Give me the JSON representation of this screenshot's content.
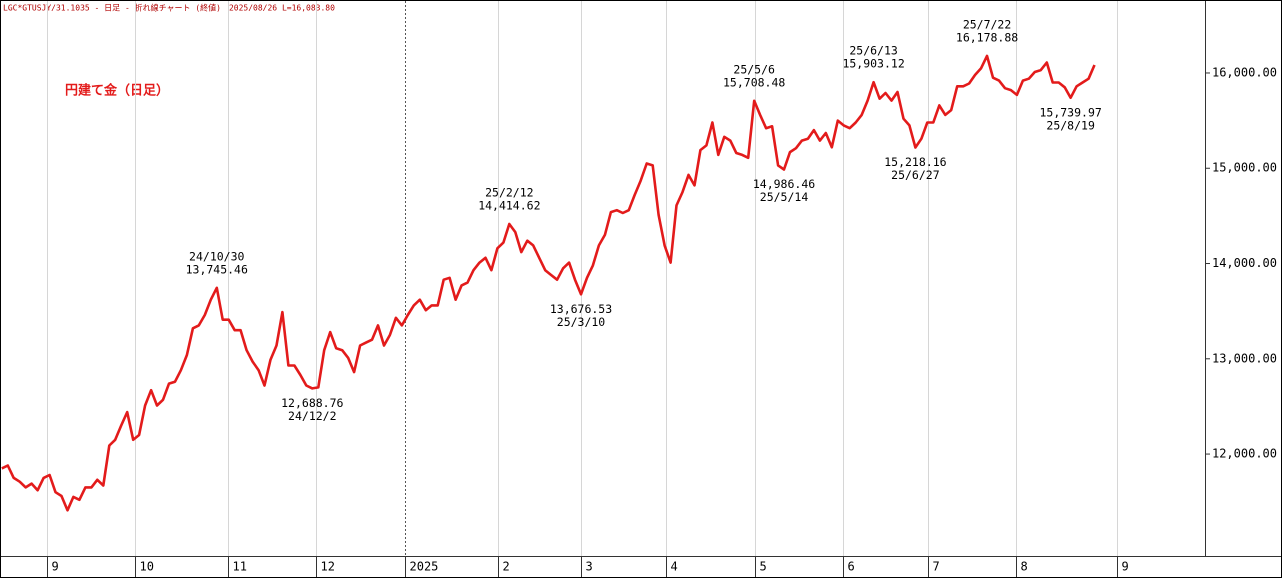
{
  "header": "LGC*GTUSJY/31.1035 - 日足 - 折れ線チャート (終値)　2025/08/26 L=16,083.80",
  "chart_data": {
    "type": "line",
    "title": "円建て金（日足）",
    "color": "#e31b1b",
    "values": [
      11850,
      11880,
      11750,
      11710,
      11650,
      11690,
      11620,
      11750,
      11780,
      11600,
      11560,
      11410,
      11550,
      11520,
      11650,
      11650,
      11730,
      11670,
      12090,
      12150,
      12300,
      12440,
      12150,
      12200,
      12510,
      12670,
      12510,
      12570,
      12740,
      12760,
      12880,
      13040,
      13320,
      13350,
      13460,
      13620,
      13745.46,
      13410,
      13410,
      13300,
      13300,
      13090,
      12970,
      12880,
      12720,
      12990,
      13140,
      13490,
      12930,
      12930,
      12830,
      12720,
      12688.76,
      12700,
      13090,
      13280,
      13110,
      13090,
      13010,
      12860,
      13140,
      13170,
      13200,
      13350,
      13140,
      13250,
      13430,
      13350,
      13460,
      13560,
      13620,
      13510,
      13560,
      13560,
      13830,
      13850,
      13620,
      13770,
      13800,
      13930,
      14010,
      14060,
      13930,
      14160,
      14220,
      14414.62,
      14330,
      14120,
      14240,
      14190,
      14060,
      13930,
      13880,
      13830,
      13950,
      14010,
      13830,
      13676.53,
      13850,
      13980,
      14190,
      14300,
      14540,
      14560,
      14530,
      14560,
      14720,
      14870,
      15050,
      15030,
      14510,
      14190,
      14010,
      14610,
      14750,
      14930,
      14820,
      15190,
      15240,
      15480,
      15140,
      15330,
      15290,
      15160,
      15140,
      15110,
      15708.48,
      15560,
      15420,
      15440,
      15030,
      14986.46,
      15170,
      15210,
      15290,
      15310,
      15400,
      15290,
      15370,
      15220,
      15500,
      15450,
      15420,
      15480,
      15560,
      15710,
      15903.12,
      15730,
      15790,
      15710,
      15800,
      15520,
      15450,
      15218.16,
      15310,
      15480,
      15480,
      15660,
      15560,
      15610,
      15860,
      15860,
      15890,
      15980,
      16050,
      16178.88,
      15950,
      15920,
      15840,
      15820,
      15770,
      15920,
      15940,
      16010,
      16030,
      16110,
      15900,
      15900,
      15850,
      15739.97,
      15860,
      15900,
      15940,
      16083.8
    ],
    "value_labels": [
      null,
      null,
      null,
      null,
      null,
      null,
      null,
      null,
      null,
      null,
      null,
      null,
      null,
      null,
      null,
      null,
      null,
      null,
      null,
      null,
      null,
      null,
      null,
      null,
      null,
      null,
      null,
      null,
      null,
      null,
      null,
      null,
      null,
      null,
      null,
      null,
      "13,745.46",
      null,
      null,
      null,
      null,
      null,
      null,
      null,
      null,
      null,
      null,
      null,
      null,
      null,
      null,
      null,
      "12,688.76",
      null,
      null,
      null,
      null,
      null,
      null,
      null,
      null,
      null,
      null,
      null,
      null,
      null,
      null,
      null,
      null,
      null,
      null,
      null,
      null,
      null,
      null,
      null,
      null,
      null,
      null,
      null,
      null,
      null,
      null,
      null,
      null,
      "14,414.62",
      null,
      null,
      null,
      null,
      null,
      null,
      null,
      null,
      null,
      null,
      null,
      "13,676.53",
      null,
      null,
      null,
      null,
      null,
      null,
      null,
      null,
      null,
      null,
      null,
      null,
      null,
      null,
      null,
      null,
      null,
      null,
      null,
      null,
      null,
      null,
      null,
      null,
      null,
      null,
      null,
      null,
      "15,708.48",
      null,
      null,
      null,
      null,
      "14,986.46",
      null,
      null,
      null,
      null,
      null,
      null,
      null,
      null,
      null,
      null,
      null,
      null,
      null,
      null,
      "15,903.12",
      null,
      null,
      null,
      null,
      null,
      null,
      "15,218.16",
      null,
      null,
      null,
      null,
      null,
      null,
      null,
      null,
      null,
      null,
      null,
      "16,178.88",
      null,
      null,
      null,
      null,
      null,
      null,
      null,
      null,
      null,
      null,
      null,
      null,
      null,
      "15,739.97",
      null,
      null,
      null,
      null
    ],
    "dates": [
      null,
      null,
      null,
      null,
      null,
      null,
      null,
      null,
      null,
      null,
      null,
      null,
      null,
      null,
      null,
      null,
      null,
      null,
      null,
      null,
      null,
      null,
      null,
      null,
      null,
      null,
      null,
      null,
      null,
      null,
      null,
      null,
      null,
      null,
      null,
      null,
      "24/10/30",
      null,
      null,
      null,
      null,
      null,
      null,
      null,
      null,
      null,
      null,
      null,
      null,
      null,
      null,
      null,
      "24/12/2",
      null,
      null,
      null,
      null,
      null,
      null,
      null,
      null,
      null,
      null,
      null,
      null,
      null,
      null,
      null,
      null,
      null,
      null,
      null,
      null,
      null,
      null,
      null,
      null,
      null,
      null,
      null,
      null,
      null,
      null,
      null,
      null,
      "25/2/12",
      null,
      null,
      null,
      null,
      null,
      null,
      null,
      null,
      null,
      null,
      null,
      "25/3/10",
      null,
      null,
      null,
      null,
      null,
      null,
      null,
      null,
      null,
      null,
      null,
      null,
      null,
      null,
      null,
      null,
      null,
      null,
      null,
      null,
      null,
      null,
      null,
      null,
      null,
      null,
      null,
      null,
      "25/5/6",
      null,
      null,
      null,
      null,
      "25/5/14",
      null,
      null,
      null,
      null,
      null,
      null,
      null,
      null,
      null,
      null,
      null,
      null,
      null,
      null,
      "25/6/13",
      null,
      null,
      null,
      null,
      null,
      null,
      "25/6/27",
      null,
      null,
      null,
      null,
      null,
      null,
      null,
      null,
      null,
      null,
      null,
      "25/7/22",
      null,
      null,
      null,
      null,
      null,
      null,
      null,
      null,
      null,
      null,
      null,
      null,
      null,
      "25/8/19",
      null,
      null,
      null,
      null
    ],
    "xlim": [
      -0.3,
      201.5
    ],
    "xticks": [
      {
        "value": 7.5,
        "label": "9"
      },
      {
        "value": 22.3,
        "label": "10"
      },
      {
        "value": 37.9,
        "label": "11"
      },
      {
        "value": 52.6,
        "label": "12"
      },
      {
        "value": 67.5,
        "label": "2025"
      },
      {
        "value": 83.1,
        "label": "2"
      },
      {
        "value": 97,
        "label": "3"
      },
      {
        "value": 111.2,
        "label": "4"
      },
      {
        "value": 126.1,
        "label": "5"
      },
      {
        "value": 140.9,
        "label": "6"
      },
      {
        "value": 155.1,
        "label": "7"
      },
      {
        "value": 169.9,
        "label": "8"
      },
      {
        "value": 186.8,
        "label": "9"
      }
    ],
    "ylim": [
      10930,
      16745
    ],
    "yticks": [
      {
        "value": 12000,
        "label": "12,000.00"
      },
      {
        "value": 13000,
        "label": "13,000.00"
      },
      {
        "value": 14000,
        "label": "14,000.00"
      },
      {
        "value": 15000,
        "label": "15,000.00"
      },
      {
        "value": 16000,
        "label": "16,000.00"
      }
    ],
    "grid": true
  }
}
